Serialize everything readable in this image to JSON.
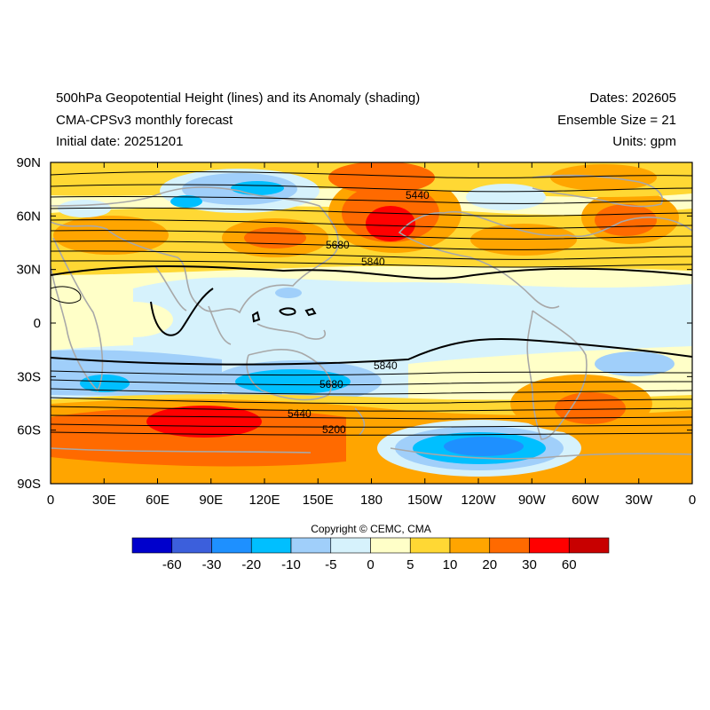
{
  "header": {
    "title": "500hPa Geopotential Height (lines) and its Anomaly (shading)",
    "model": "CMA-CPSv3 monthly forecast",
    "initial_date": "Initial date: 20251201",
    "dates": "Dates: 202605",
    "ensemble": "Ensemble Size = 21",
    "units": "Units: gpm"
  },
  "map": {
    "lat_labels": [
      "90N",
      "60N",
      "30N",
      "0",
      "30S",
      "60S",
      "90S"
    ],
    "lon_labels": [
      "0",
      "30E",
      "60E",
      "90E",
      "120E",
      "150E",
      "180",
      "150W",
      "120W",
      "90W",
      "60W",
      "30W",
      "0"
    ],
    "contour_labels": [
      "5440",
      "5680",
      "5840",
      "5840",
      "5680",
      "5440",
      "5200"
    ],
    "coast_color": "#a8a8a8"
  },
  "copyright": "Copyright © CEMC, CMA",
  "colorbar": {
    "colors": [
      "#0000cc",
      "#3c5fdc",
      "#1e90ff",
      "#00bfff",
      "#a0cffa",
      "#d6f2fc",
      "#ffffc8",
      "#ffd834",
      "#ffa500",
      "#ff6a00",
      "#ff0000",
      "#c80000"
    ],
    "labels": [
      "-60",
      "-30",
      "-20",
      "-10",
      "-5",
      "0",
      "5",
      "10",
      "20",
      "30",
      "60"
    ]
  }
}
